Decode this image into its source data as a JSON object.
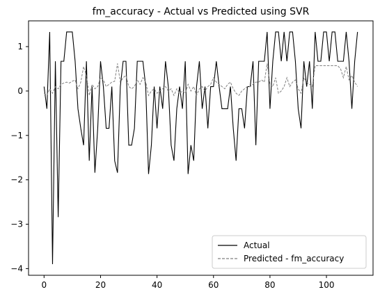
{
  "chart_data": {
    "type": "line",
    "title": "fm_accuracy - Actual vs Predicted using SVR",
    "xlabel": "",
    "ylabel": "",
    "xlim": [
      -5.5,
      116.5
    ],
    "ylim": [
      -4.15,
      1.58
    ],
    "xticks": [
      0,
      20,
      40,
      60,
      80,
      100
    ],
    "yticks": [
      -4,
      -3,
      -2,
      -1,
      0,
      1
    ],
    "grid": false,
    "legend_position": "lower-right",
    "series": [
      {
        "name": "Actual",
        "style": "solid",
        "color": "#000000",
        "x": [
          0,
          1,
          2,
          3,
          4,
          5,
          6,
          7,
          8,
          9,
          10,
          11,
          12,
          13,
          14,
          15,
          16,
          17,
          18,
          19,
          20,
          21,
          22,
          23,
          24,
          25,
          26,
          27,
          28,
          29,
          30,
          31,
          32,
          33,
          34,
          35,
          36,
          37,
          38,
          39,
          40,
          41,
          42,
          43,
          44,
          45,
          46,
          47,
          48,
          49,
          50,
          51,
          52,
          53,
          54,
          55,
          56,
          57,
          58,
          59,
          60,
          61,
          62,
          63,
          64,
          65,
          66,
          67,
          68,
          69,
          70,
          71,
          72,
          73,
          74,
          75,
          76,
          77,
          78,
          79,
          80,
          81,
          82,
          83,
          84,
          85,
          86,
          87,
          88,
          89,
          90,
          91,
          92,
          93,
          94,
          95,
          96,
          97,
          98,
          99,
          100,
          101,
          102,
          103,
          104,
          105,
          106,
          107,
          108,
          109,
          110,
          111
        ],
        "y": [
          0.1,
          -0.4,
          1.33,
          -3.9,
          0.67,
          -2.84,
          0.67,
          0.67,
          1.33,
          1.33,
          1.33,
          0.67,
          -0.4,
          -0.84,
          -1.22,
          0.67,
          -1.57,
          0.1,
          -1.84,
          -0.84,
          0.67,
          0.1,
          -0.84,
          -0.84,
          0.1,
          -1.57,
          -1.84,
          0.1,
          0.67,
          0.67,
          -1.22,
          -1.22,
          -0.84,
          0.67,
          0.67,
          0.67,
          0.1,
          -1.87,
          -1.22,
          0.1,
          -0.84,
          0.1,
          -0.4,
          0.67,
          0.1,
          -1.22,
          -1.57,
          -0.4,
          0.1,
          -0.4,
          0.67,
          -1.87,
          -1.22,
          -1.57,
          0.1,
          0.67,
          -0.4,
          0.1,
          -0.84,
          0.1,
          0.1,
          0.67,
          0.1,
          -0.4,
          -0.4,
          -0.4,
          0.1,
          -0.84,
          -1.57,
          -0.4,
          -0.4,
          -0.84,
          0.1,
          0.1,
          0.67,
          -1.22,
          0.67,
          0.67,
          0.67,
          1.33,
          -0.4,
          0.67,
          1.33,
          1.33,
          0.67,
          1.33,
          0.67,
          1.33,
          1.33,
          0.67,
          -0.4,
          -0.84,
          0.67,
          0.1,
          0.67,
          -0.4,
          1.33,
          0.67,
          0.67,
          1.33,
          1.33,
          0.67,
          1.33,
          1.33,
          0.67,
          0.67,
          0.67,
          1.33,
          0.67,
          -0.4,
          0.67,
          1.33
        ]
      },
      {
        "name": "Predicted - fm_accuracy",
        "style": "dashed",
        "color": "#808080",
        "x": [
          0,
          1,
          2,
          3,
          4,
          5,
          6,
          7,
          8,
          9,
          10,
          11,
          12,
          13,
          14,
          15,
          16,
          17,
          18,
          19,
          20,
          21,
          22,
          23,
          24,
          25,
          26,
          27,
          28,
          29,
          30,
          31,
          32,
          33,
          34,
          35,
          36,
          37,
          38,
          39,
          40,
          41,
          42,
          43,
          44,
          45,
          46,
          47,
          48,
          49,
          50,
          51,
          52,
          53,
          54,
          55,
          56,
          57,
          58,
          59,
          60,
          61,
          62,
          63,
          64,
          65,
          66,
          67,
          68,
          69,
          70,
          71,
          72,
          73,
          74,
          75,
          76,
          77,
          78,
          79,
          80,
          81,
          82,
          83,
          84,
          85,
          86,
          87,
          88,
          89,
          90,
          91,
          92,
          93,
          94,
          95,
          96,
          97,
          98,
          99,
          100,
          101,
          102,
          103,
          104,
          105,
          106,
          107,
          108,
          109,
          110,
          111
        ],
        "y": [
          -0.05,
          -0.1,
          0.05,
          -0.05,
          0.1,
          0.05,
          0.15,
          0.18,
          0.2,
          0.18,
          0.22,
          0.25,
          0.05,
          0.2,
          0.55,
          0.35,
          -0.1,
          0.15,
          0.05,
          0.1,
          0.3,
          0.25,
          0.1,
          0.15,
          0.2,
          0.22,
          0.62,
          0.2,
          0.3,
          0.35,
          0.1,
          0.05,
          0.1,
          0.25,
          0.15,
          0.3,
          0.2,
          -0.1,
          0.0,
          0.05,
          -0.05,
          0.0,
          0.05,
          0.1,
          0.0,
          0.05,
          -0.1,
          0.05,
          -0.05,
          0.0,
          -0.05,
          0.15,
          0.0,
          0.1,
          -0.1,
          0.05,
          0.1,
          0.0,
          0.1,
          0.15,
          0.3,
          0.2,
          0.15,
          0.1,
          0.05,
          0.15,
          0.2,
          0.05,
          -0.05,
          -0.1,
          0.0,
          0.05,
          0.1,
          0.1,
          0.15,
          0.2,
          0.2,
          0.25,
          0.2,
          0.62,
          0.15,
          0.1,
          0.3,
          -0.05,
          0.0,
          0.1,
          0.3,
          0.1,
          0.2,
          0.25,
          0.05,
          -0.05,
          0.3,
          0.2,
          0.15,
          0.1,
          0.57,
          0.57,
          0.57,
          0.57,
          0.57,
          0.57,
          0.57,
          0.57,
          0.57,
          0.5,
          0.3,
          0.55,
          0.25,
          0.35,
          0.2,
          0.1
        ]
      }
    ]
  },
  "colors": {
    "actual": "#000000",
    "predicted": "#808080",
    "axes": "#000000",
    "background": "#ffffff"
  }
}
